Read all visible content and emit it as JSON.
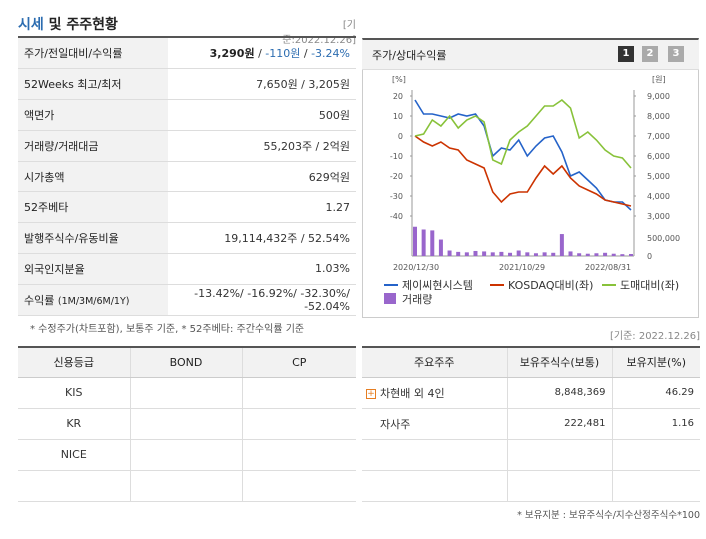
{
  "header": {
    "title_hl": "시세",
    "title_rest": " 및 주주현황",
    "base_date": "[기준:2022.12.26]"
  },
  "info": {
    "price_label": "주가/전일대비/수익률",
    "price": "3,290원",
    "change": "-110원",
    "return": "-3.24%",
    "w52_label": "52Weeks 최고/최저",
    "w52_value": "7,650원 / 3,205원",
    "par_label": "액면가",
    "par_value": "500원",
    "volume_label": "거래량/거래대금",
    "volume_value": "55,203주 / 2억원",
    "mcap_label": "시가총액",
    "mcap_value": "629억원",
    "beta_label": "52주베타",
    "beta_value": "1.27",
    "shares_label": "발행주식수/유동비율",
    "shares_value": "19,114,432주 / 52.54%",
    "foreign_label": "외국인지분율",
    "foreign_value": "1.03%",
    "returns_label": "수익률",
    "returns_label_small": "(1M/3M/6M/1Y)",
    "returns_value": "-13.42%/ -16.92%/ -32.30%/ -52.04%"
  },
  "footnote1": "* 수정주가(차트포함), 보통주 기준, * 52주베타: 주간수익률 기준",
  "chart_panel": {
    "title": "주가/상대수익률",
    "buttons": [
      "1",
      "2",
      "3"
    ],
    "left_unit": "[%]",
    "right_unit": "[원]"
  },
  "chart_data": {
    "type": "line",
    "x_ticks": [
      "2020/12/30",
      "2021/10/29",
      "2022/08/31"
    ],
    "left_axis": {
      "ticks": [
        20,
        10,
        0,
        -10,
        -20,
        -30,
        -40
      ],
      "ylim": [
        -40,
        20
      ]
    },
    "right_axis": {
      "ticks": [
        "9,000",
        "8,000",
        "7,000",
        "6,000",
        "5,000",
        "4,000",
        "3,000"
      ],
      "ylim": [
        3000,
        9000
      ]
    },
    "volume_axis": {
      "ticks": [
        "500,000",
        "0"
      ]
    },
    "series": [
      {
        "name": "제이씨현시스템",
        "color": "#2563c9",
        "values": [
          18,
          11,
          11,
          10,
          9,
          11,
          10,
          11,
          5,
          -10,
          -6,
          -7,
          -2,
          -10,
          -5,
          -1,
          0,
          -8,
          -20,
          -18,
          -22,
          -26,
          -32,
          -33,
          -33,
          -37
        ]
      },
      {
        "name": "KOSDAQ대비(좌)",
        "color": "#cc3300",
        "values": [
          0,
          -3,
          -5,
          -3,
          -6,
          -7,
          -12,
          -14,
          -16,
          -28,
          -33,
          -29,
          -28,
          -28,
          -21,
          -15,
          -19,
          -15,
          -21,
          -25,
          -27,
          -29,
          -32,
          -33,
          -34,
          -35
        ]
      },
      {
        "name": "도매대비(좌)",
        "color": "#88c23a",
        "values": [
          0,
          1,
          8,
          5,
          10,
          4,
          8,
          10,
          7,
          -12,
          -14,
          -2,
          2,
          5,
          10,
          15,
          15,
          18,
          14,
          -1,
          2,
          -2,
          -7,
          -10,
          -11,
          -16
        ]
      },
      {
        "name": "거래량",
        "color": "#9966cc",
        "values": [
          320000,
          290000,
          280000,
          180000,
          60000,
          45000,
          40000,
          55000,
          50000,
          40000,
          45000,
          35000,
          60000,
          40000,
          30000,
          40000,
          35000,
          240000,
          50000,
          30000,
          25000,
          30000,
          35000,
          25000,
          20000,
          22000
        ]
      }
    ]
  },
  "credit_table": {
    "headers": [
      "신용등급",
      "BOND",
      "CP"
    ],
    "rows": [
      [
        "KIS",
        "",
        ""
      ],
      [
        "KR",
        "",
        ""
      ],
      [
        "NICE",
        "",
        ""
      ],
      [
        "",
        "",
        ""
      ]
    ]
  },
  "holder_table": {
    "base_date": "[기준: 2022.12.26]",
    "headers": [
      "주요주주",
      "보유주식수(보통)",
      "보유지분(%)"
    ],
    "rows": [
      [
        "차현배 외 4인",
        "8,848,369",
        "46.29"
      ],
      [
        "자사주",
        "222,481",
        "1.16"
      ],
      [
        "",
        "",
        ""
      ],
      [
        "",
        "",
        ""
      ]
    ]
  },
  "footnote2": "* 보유지분 : 보유주식수/지수산정주식수*100"
}
